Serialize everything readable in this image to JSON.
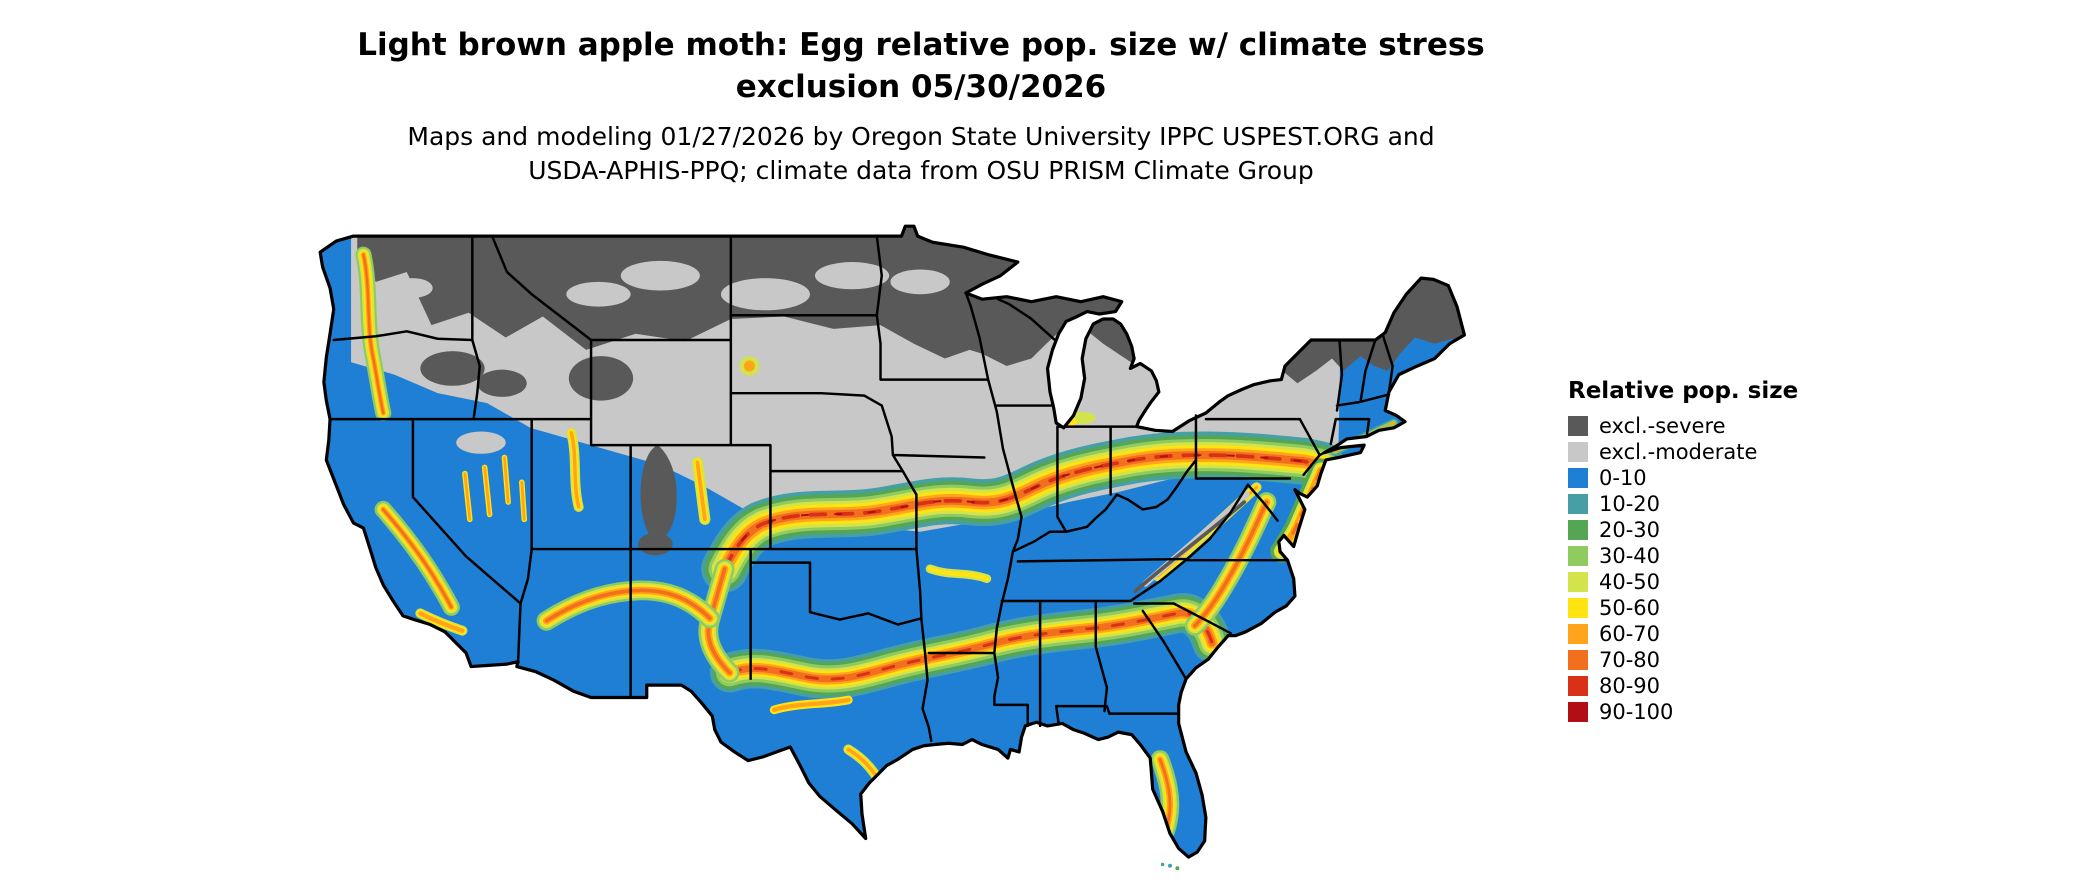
{
  "title": {
    "line1": "Light brown apple moth: Egg relative pop. size w/ climate stress",
    "line2": "exclusion 05/30/2026"
  },
  "subtitle": {
    "line1": "Maps and modeling 01/27/2026 by Oregon State University IPPC USPEST.ORG and",
    "line2": "USDA-APHIS-PPQ; climate data from OSU PRISM Climate Group"
  },
  "legend": {
    "title": "Relative pop. size",
    "items": [
      {
        "label": "excl.-severe",
        "color": "#595959"
      },
      {
        "label": "excl.-moderate",
        "color": "#C8C8C8"
      },
      {
        "label": "0-10",
        "color": "#1E7FD4"
      },
      {
        "label": "10-20",
        "color": "#479FA6"
      },
      {
        "label": "20-30",
        "color": "#55A654"
      },
      {
        "label": "30-40",
        "color": "#90CB5F"
      },
      {
        "label": "40-50",
        "color": "#D3E34B"
      },
      {
        "label": "50-60",
        "color": "#FFE312"
      },
      {
        "label": "60-70",
        "color": "#FFA41B"
      },
      {
        "label": "70-80",
        "color": "#F2701D"
      },
      {
        "label": "80-90",
        "color": "#D93018"
      },
      {
        "label": "90-100",
        "color": "#B10E15"
      }
    ]
  }
}
